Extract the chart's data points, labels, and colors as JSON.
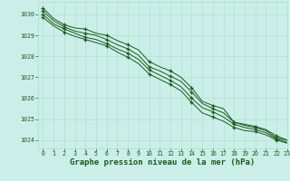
{
  "bg_color": "#cceee8",
  "grid_color_major": "#aaddcc",
  "grid_color_minor": "#cceee8",
  "line_color": "#1a5c1a",
  "marker_color": "#1a5c1a",
  "xlabel": "Graphe pression niveau de la mer (hPa)",
  "xlabel_fontsize": 6.5,
  "tick_fontsize": 4.8,
  "xlim": [
    -0.5,
    23
  ],
  "ylim": [
    1023.6,
    1030.6
  ],
  "yticks": [
    1024,
    1025,
    1026,
    1027,
    1028,
    1029,
    1030
  ],
  "xticks": [
    0,
    1,
    2,
    3,
    4,
    5,
    6,
    7,
    8,
    9,
    10,
    11,
    12,
    13,
    14,
    15,
    16,
    17,
    18,
    19,
    20,
    21,
    22,
    23
  ],
  "series": [
    [
      1030.3,
      1029.8,
      1029.5,
      1029.35,
      1029.3,
      1029.1,
      1029.0,
      1028.75,
      1028.55,
      1028.3,
      1027.75,
      1027.5,
      1027.3,
      1027.0,
      1026.5,
      1025.85,
      1025.65,
      1025.5,
      1024.85,
      1024.75,
      1024.65,
      1024.5,
      1024.2,
      1024.0
    ],
    [
      1030.15,
      1029.7,
      1029.4,
      1029.2,
      1029.1,
      1029.0,
      1028.8,
      1028.55,
      1028.35,
      1028.05,
      1027.5,
      1027.3,
      1027.05,
      1026.8,
      1026.3,
      1025.75,
      1025.5,
      1025.3,
      1024.85,
      1024.7,
      1024.6,
      1024.45,
      1024.1,
      1024.0
    ],
    [
      1030.0,
      1029.55,
      1029.3,
      1029.1,
      1028.9,
      1028.8,
      1028.6,
      1028.35,
      1028.15,
      1027.85,
      1027.35,
      1027.1,
      1026.85,
      1026.55,
      1026.0,
      1025.55,
      1025.35,
      1025.1,
      1024.75,
      1024.6,
      1024.5,
      1024.35,
      1024.05,
      1023.9
    ],
    [
      1029.85,
      1029.45,
      1029.15,
      1028.95,
      1028.8,
      1028.65,
      1028.5,
      1028.2,
      1027.95,
      1027.65,
      1027.15,
      1026.9,
      1026.65,
      1026.35,
      1025.8,
      1025.3,
      1025.1,
      1024.9,
      1024.6,
      1024.45,
      1024.4,
      1024.25,
      1024.0,
      1023.85
    ]
  ],
  "marker_indices": [
    0,
    2,
    4,
    6,
    8,
    10,
    12,
    14,
    16,
    18,
    20,
    22
  ]
}
